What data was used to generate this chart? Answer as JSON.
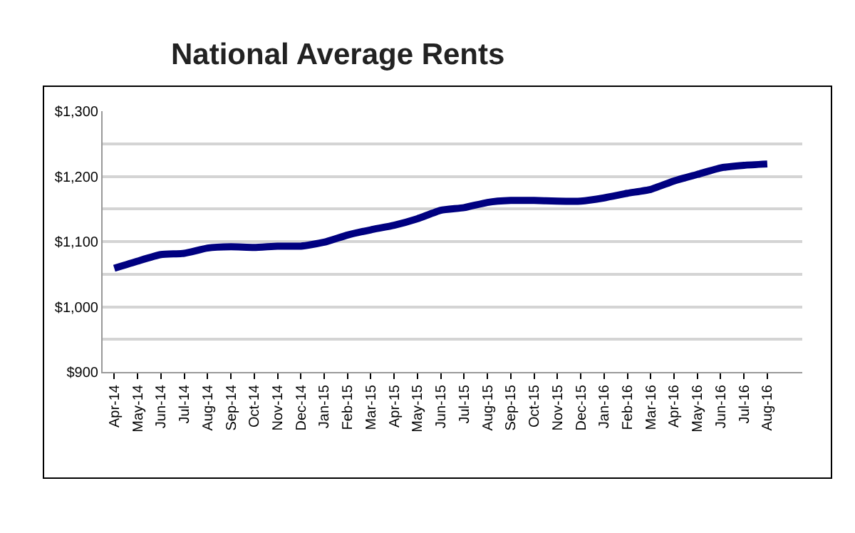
{
  "chart_data": {
    "type": "line",
    "title": "National Average Rents",
    "categories": [
      "Apr-14",
      "May-14",
      "Jun-14",
      "Jul-14",
      "Aug-14",
      "Sep-14",
      "Oct-14",
      "Nov-14",
      "Dec-14",
      "Jan-15",
      "Feb-15",
      "Mar-15",
      "Apr-15",
      "May-15",
      "Jun-15",
      "Jul-15",
      "Aug-15",
      "Sep-15",
      "Oct-15",
      "Nov-15",
      "Dec-15",
      "Jan-16",
      "Feb-16",
      "Mar-16",
      "Apr-16",
      "May-16",
      "Jun-16",
      "Jul-16",
      "Aug-16"
    ],
    "series": [
      {
        "color": "#000080",
        "values": [
          1059,
          1070,
          1080,
          1082,
          1090,
          1092,
          1091,
          1093,
          1093,
          1099,
          1110,
          1118,
          1125,
          1135,
          1148,
          1152,
          1160,
          1163,
          1163,
          1162,
          1162,
          1167,
          1174,
          1180,
          1193,
          1203,
          1213,
          1217,
          1219
        ]
      }
    ],
    "ylim": [
      900,
      1300
    ],
    "yticks": [
      {
        "value": 900,
        "label": "$900"
      },
      {
        "value": 950,
        "label": null
      },
      {
        "value": 1000,
        "label": "$1,000"
      },
      {
        "value": 1050,
        "label": null
      },
      {
        "value": 1100,
        "label": "$1,100"
      },
      {
        "value": 1150,
        "label": null
      },
      {
        "value": 1200,
        "label": "$1,200"
      },
      {
        "value": 1250,
        "label": null
      },
      {
        "value": 1300,
        "label": "$1,300"
      }
    ],
    "grid": "y",
    "marker": "none",
    "line_style": "solid"
  }
}
